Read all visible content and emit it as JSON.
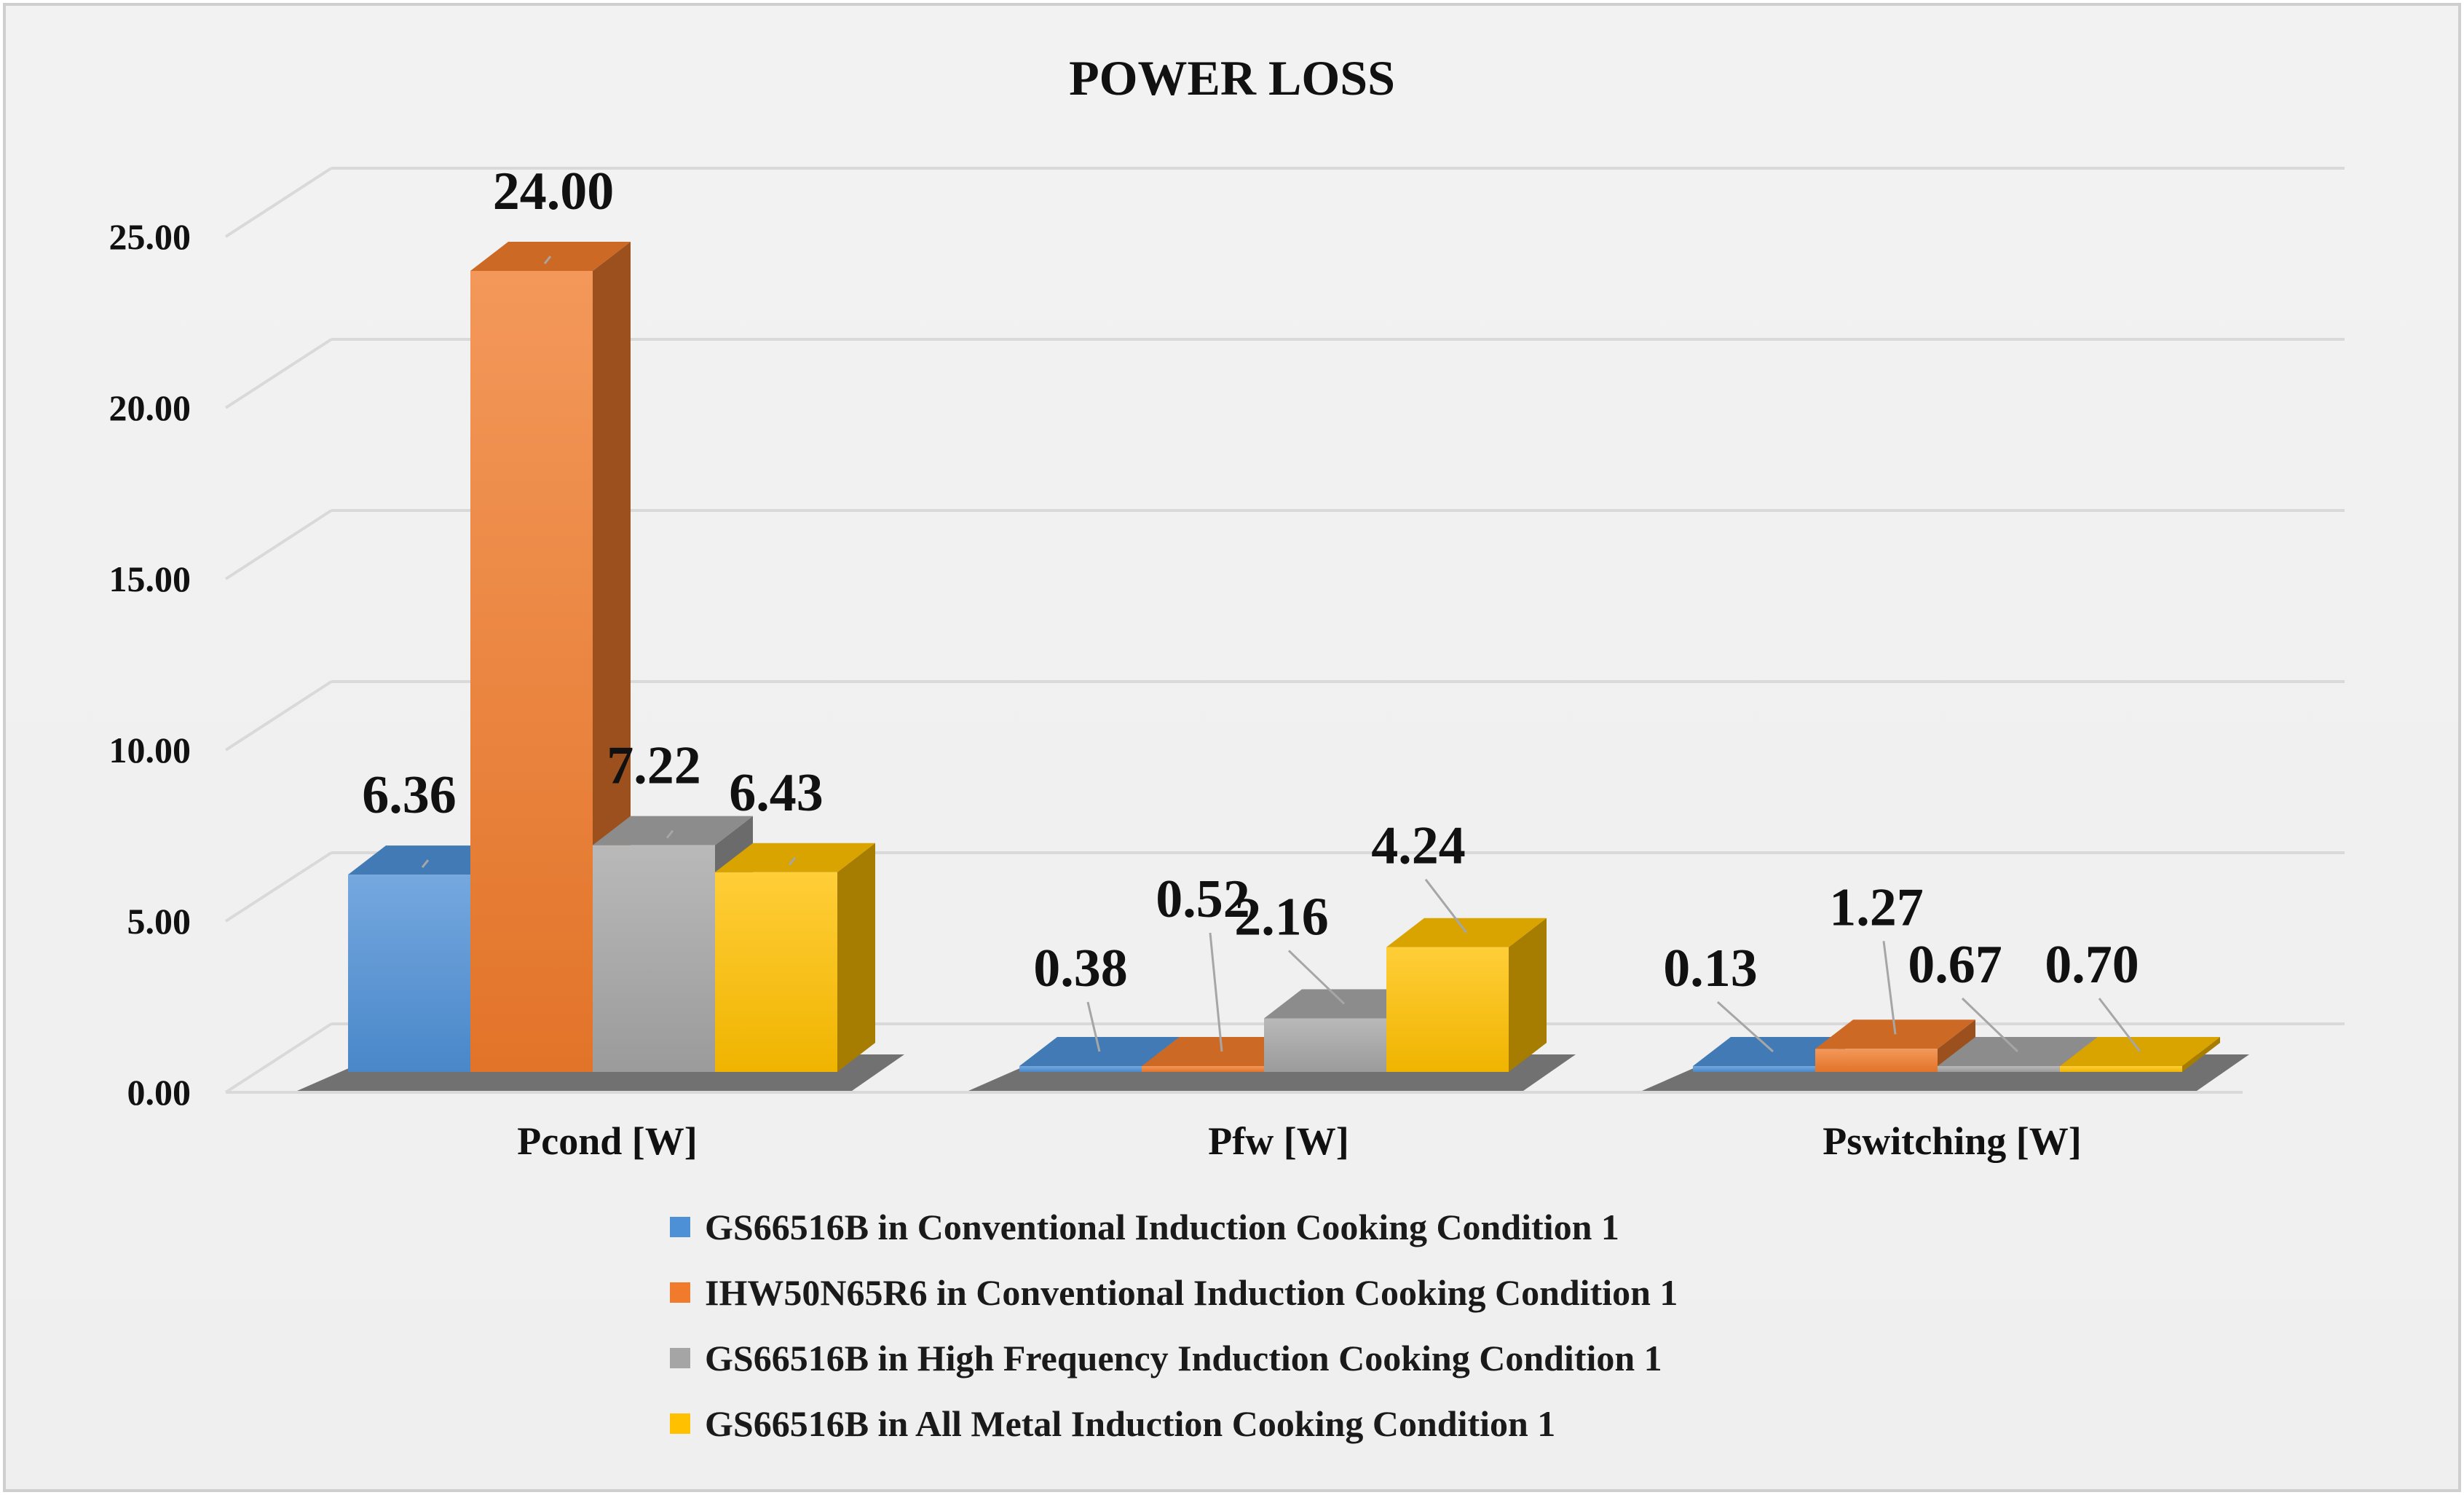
{
  "chart_data": {
    "type": "bar",
    "title": "POWER LOSS",
    "xlabel": "",
    "ylabel": "",
    "ylim": [
      0,
      25
    ],
    "yticks": [
      "0.00",
      "5.00",
      "10.00",
      "15.00",
      "20.00",
      "25.00"
    ],
    "ytick_values": [
      0,
      5,
      10,
      15,
      20,
      25
    ],
    "grid": true,
    "legend_position": "bottom",
    "categories": [
      "Pcond [W]",
      "Pfw [W]",
      "Pswitching [W]"
    ],
    "series": [
      {
        "name": "GS66516B in Conventional Induction Cooking Condition 1",
        "color": "#4E90D6",
        "values": [
          6.36,
          0.38,
          0.13
        ],
        "labels": [
          "6.36",
          "0.38",
          "0.13"
        ]
      },
      {
        "name": "IHW50N65R6 in Conventional Induction Cooking Condition 1",
        "color": "#F07B2C",
        "values": [
          24.0,
          0.52,
          1.27
        ],
        "labels": [
          "24.00",
          "0.52",
          "1.27"
        ]
      },
      {
        "name": "GS66516B in High Frequency Induction Cooking Condition 1",
        "color": "#A5A5A5",
        "values": [
          7.22,
          2.16,
          0.67
        ],
        "labels": [
          "7.22",
          "2.16",
          "0.67"
        ]
      },
      {
        "name": "GS66516B in All Metal Induction Cooking Condition 1",
        "color": "#FFC000",
        "values": [
          6.43,
          4.24,
          0.7
        ],
        "labels": [
          "6.43",
          "4.24",
          "0.70"
        ]
      }
    ]
  }
}
